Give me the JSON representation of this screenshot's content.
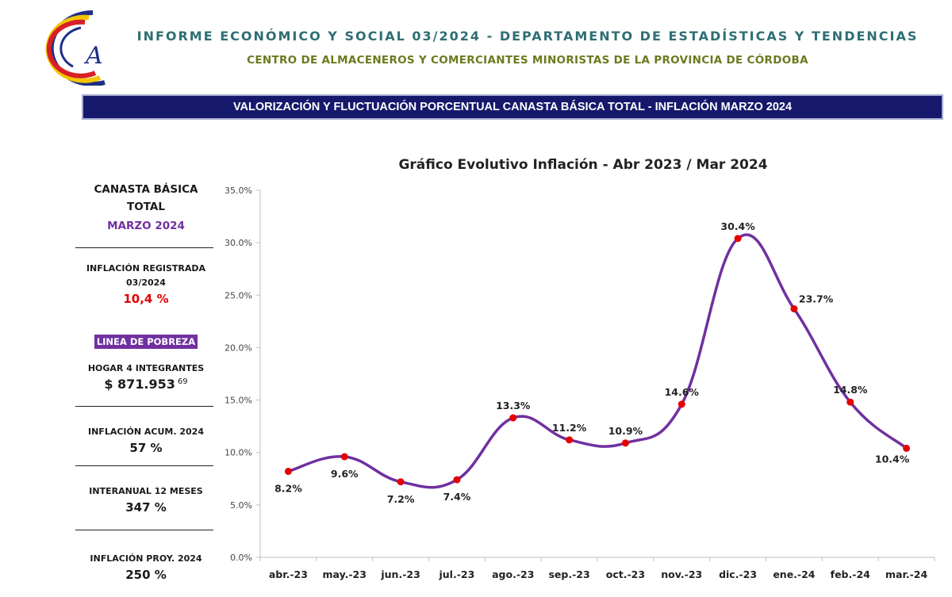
{
  "header": {
    "title": "INFORME ECONÓMICO Y SOCIAL 03/2024 - DEPARTAMENTO DE ESTADÍSTICAS Y TENDENCIAS",
    "subtitle": "CENTRO DE ALMACENEROS Y COMERCIANTES MINORISTAS DE LA PROVINCIA DE CÓRDOBA",
    "logo_letter": "A"
  },
  "banner": "VALORIZACIÓN Y FLUCTUACIÓN PORCENTUAL CANASTA BÁSICA TOTAL - INFLACIÓN MARZO 2024",
  "sidebar": {
    "heading_line1": "CANASTA BÁSICA",
    "heading_line2": "TOTAL",
    "period": "MARZO 2024",
    "inflation_label_line1": "INFLACIÓN REGISTRADA",
    "inflation_label_line2": "03/2024",
    "inflation_value": "10,4 %",
    "poverty_label": "LINEA DE POBREZA",
    "household_label": "HOGAR 4 INTEGRANTES",
    "household_value": "$ 871.953",
    "household_cents": "69",
    "accum_label": "INFLACIÓN ACUM. 2024",
    "accum_value": "57 %",
    "yoy_label": "INTERANUAL 12 MESES",
    "yoy_value": "347 %",
    "proj_label": "INFLACIÓN PROY. 2024",
    "proj_value": "250 %"
  },
  "colors": {
    "line": "#7030a0",
    "point": "#e60000",
    "banner_bg": "#16196b",
    "inflation_value": "#e00000",
    "period": "#7030a0",
    "poverty_bg": "#7030a0"
  },
  "chart_data": {
    "type": "line",
    "title": "Gráfico Evolutivo Inflación - Abr 2023 / Mar 2024",
    "categories": [
      "abr.-23",
      "may.-23",
      "jun.-23",
      "jul.-23",
      "ago.-23",
      "sep.-23",
      "oct.-23",
      "nov.-23",
      "dic.-23",
      "ene.-24",
      "feb.-24",
      "mar.-24"
    ],
    "values": [
      8.2,
      9.6,
      7.2,
      7.4,
      13.3,
      11.2,
      10.9,
      14.6,
      30.4,
      23.7,
      14.8,
      10.4
    ],
    "data_labels": [
      "8.2%",
      "9.6%",
      "7.2%",
      "7.4%",
      "13.3%",
      "11.2%",
      "10.9%",
      "14.6%",
      "30.4%",
      "23.7%",
      "14.8%",
      "10.4%"
    ],
    "y_ticks": [
      "0.0%",
      "5.0%",
      "10.0%",
      "15.0%",
      "20.0%",
      "25.0%",
      "30.0%",
      "35.0%"
    ],
    "ylim": [
      0,
      35
    ],
    "grid": false,
    "smooth": true
  }
}
